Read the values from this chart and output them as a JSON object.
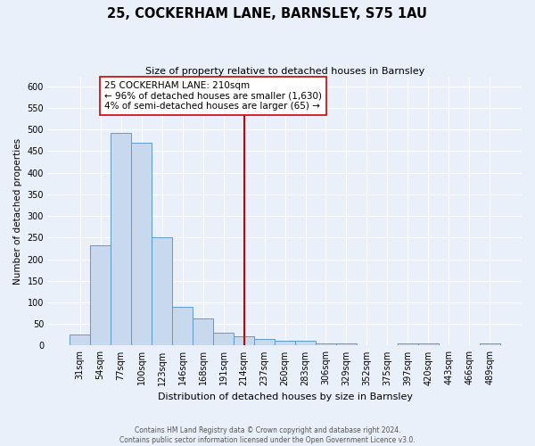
{
  "title": "25, COCKERHAM LANE, BARNSLEY, S75 1AU",
  "subtitle": "Size of property relative to detached houses in Barnsley",
  "xlabel": "Distribution of detached houses by size in Barnsley",
  "ylabel": "Number of detached properties",
  "bar_labels": [
    "31sqm",
    "54sqm",
    "77sqm",
    "100sqm",
    "123sqm",
    "146sqm",
    "168sqm",
    "191sqm",
    "214sqm",
    "237sqm",
    "260sqm",
    "283sqm",
    "306sqm",
    "329sqm",
    "352sqm",
    "375sqm",
    "397sqm",
    "420sqm",
    "443sqm",
    "466sqm",
    "489sqm"
  ],
  "bar_values": [
    25,
    233,
    492,
    470,
    250,
    90,
    63,
    30,
    22,
    15,
    12,
    11,
    4,
    4,
    0,
    0,
    5,
    5,
    0,
    1,
    5
  ],
  "bar_color": "#c8d9ee",
  "bar_edge_color": "#5b9bd5",
  "vline_x_index": 8,
  "vline_color": "#cc0000",
  "annotation_title": "25 COCKERHAM LANE: 210sqm",
  "annotation_line1": "← 96% of detached houses are smaller (1,630)",
  "annotation_line2": "4% of semi-detached houses are larger (65) →",
  "annotation_box_color": "#ffffff",
  "annotation_box_edge": "#cc0000",
  "ylim": [
    0,
    620
  ],
  "yticks": [
    0,
    50,
    100,
    150,
    200,
    250,
    300,
    350,
    400,
    450,
    500,
    550,
    600
  ],
  "footer1": "Contains HM Land Registry data © Crown copyright and database right 2024.",
  "footer2": "Contains public sector information licensed under the Open Government Licence v3.0.",
  "bg_color": "#eaf0f9",
  "plot_bg_color": "#eaf0f9",
  "title_fontsize": 10.5,
  "subtitle_fontsize": 8,
  "xlabel_fontsize": 8,
  "ylabel_fontsize": 7.5,
  "tick_fontsize": 7,
  "annotation_fontsize": 7.5,
  "footer_fontsize": 5.5
}
